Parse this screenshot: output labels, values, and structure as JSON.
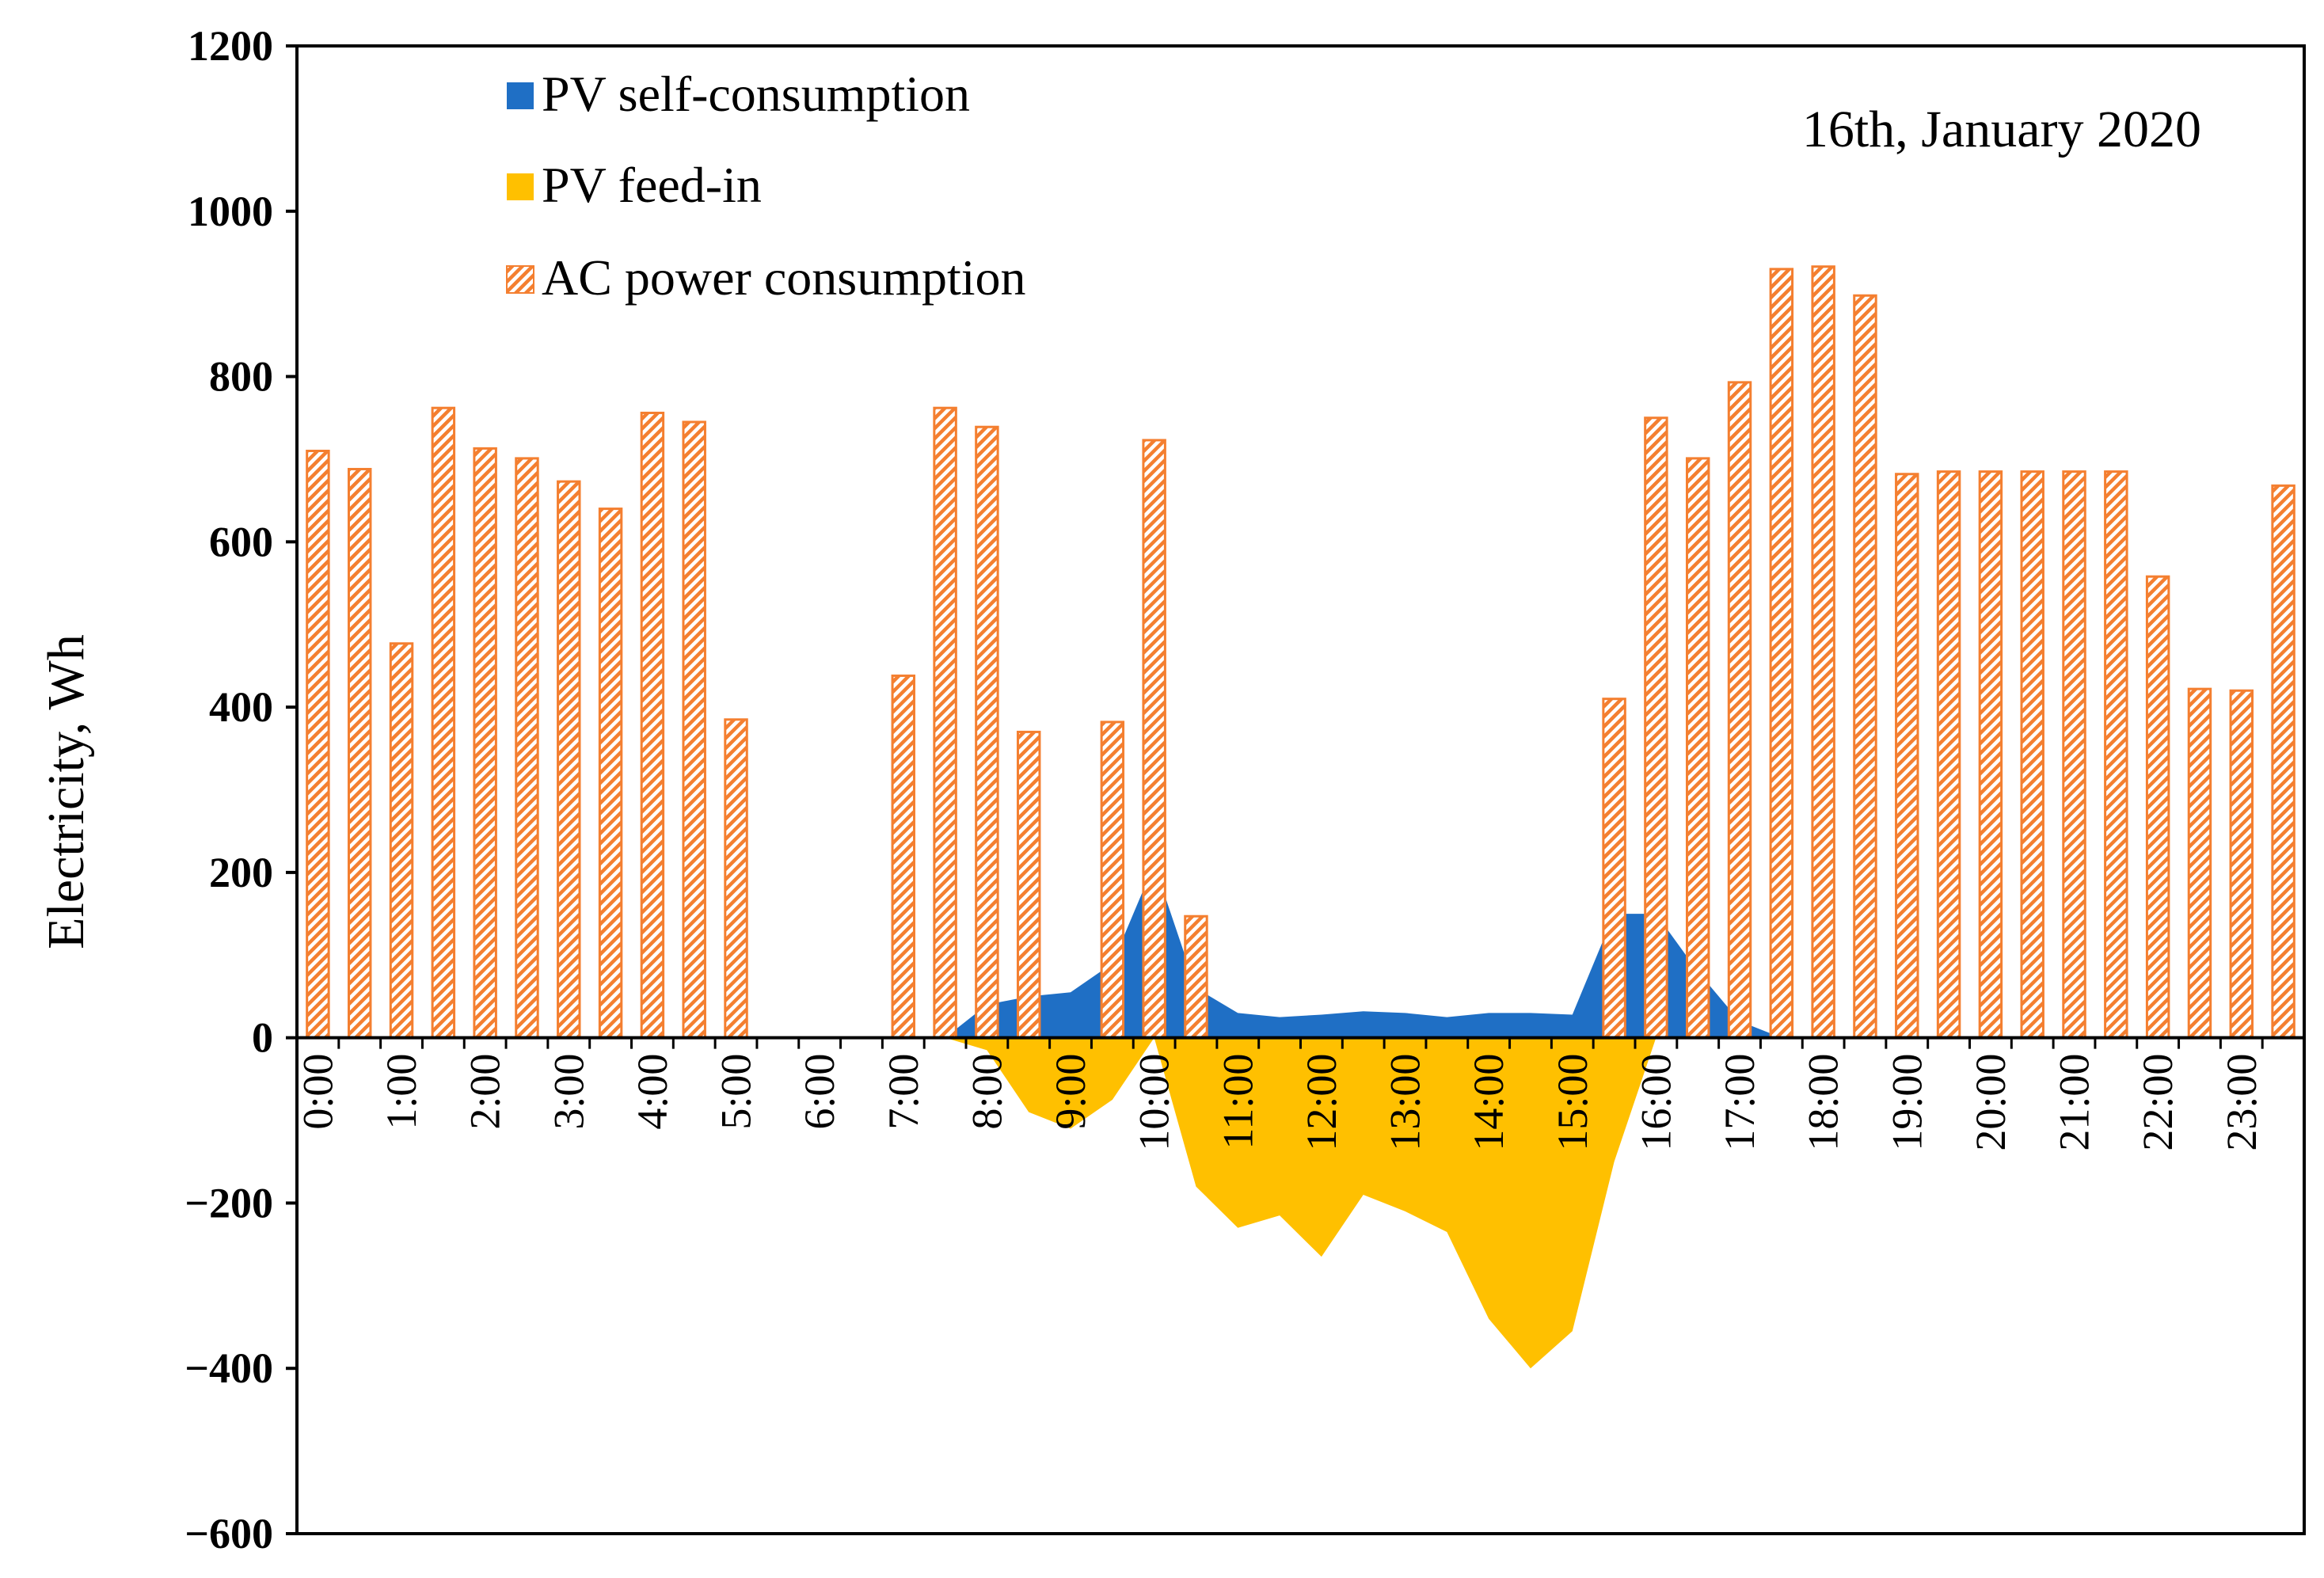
{
  "chart_data": {
    "type": "bar",
    "annotation": "16th, January 2020",
    "ylabel": "Electricity,  Wh",
    "xlabel": "",
    "ylim": [
      -600,
      1200
    ],
    "yticks": [
      1200,
      1000,
      800,
      600,
      400,
      200,
      0,
      -200,
      -400,
      -600
    ],
    "ytick_labels": [
      "1200",
      "1000",
      "800",
      "600",
      "400",
      "200",
      "0",
      "−200",
      "−400",
      "−600"
    ],
    "categories": [
      "0:00",
      "0:30",
      "1:00",
      "1:30",
      "2:00",
      "2:30",
      "3:00",
      "3:30",
      "4:00",
      "4:30",
      "5:00",
      "5:30",
      "6:00",
      "6:30",
      "7:00",
      "7:30",
      "8:00",
      "8:30",
      "9:00",
      "9:30",
      "10:00",
      "10:30",
      "11:00",
      "11:30",
      "12:00",
      "12:30",
      "13:00",
      "13:30",
      "14:00",
      "14:30",
      "15:00",
      "15:30",
      "16:00",
      "16:30",
      "17:00",
      "17:30",
      "18:00",
      "18:30",
      "19:00",
      "19:30",
      "20:00",
      "20:30",
      "21:00",
      "21:30",
      "22:00",
      "22:30",
      "23:00",
      "23:30"
    ],
    "x_tick_labels": [
      "0:00",
      "1:00",
      "2:00",
      "3:00",
      "4:00",
      "5:00",
      "6:00",
      "7:00",
      "8:00",
      "9:00",
      "10:00",
      "11:00",
      "12:00",
      "13:00",
      "14:00",
      "15:00",
      "16:00",
      "17:00",
      "18:00",
      "19:00",
      "20:00",
      "21:00",
      "22:00",
      "23:00"
    ],
    "series": [
      {
        "name": "PV self-consumption",
        "type": "area",
        "color": "#1F6FC5",
        "values": [
          0,
          0,
          0,
          0,
          0,
          0,
          0,
          0,
          0,
          0,
          0,
          0,
          0,
          0,
          0,
          0,
          40,
          50,
          55,
          90,
          210,
          60,
          30,
          25,
          28,
          32,
          30,
          25,
          30,
          30,
          28,
          150,
          150,
          80,
          20,
          0,
          0,
          0,
          0,
          0,
          0,
          0,
          0,
          0,
          0,
          0,
          0,
          0
        ]
      },
      {
        "name": "PV feed-in",
        "type": "area",
        "color": "#FFC000",
        "values": [
          0,
          0,
          0,
          0,
          0,
          0,
          0,
          0,
          0,
          0,
          0,
          0,
          0,
          0,
          0,
          0,
          -15,
          -90,
          -110,
          -75,
          0,
          -180,
          -230,
          -215,
          -265,
          -190,
          -210,
          -235,
          -340,
          -400,
          -355,
          -150,
          0,
          0,
          0,
          0,
          0,
          0,
          0,
          0,
          0,
          0,
          0,
          0,
          0,
          0,
          0,
          0
        ]
      },
      {
        "name": "AC power consumption",
        "type": "bar",
        "color": "#F47F30",
        "values": [
          710,
          688,
          477,
          762,
          713,
          701,
          673,
          640,
          756,
          745,
          385,
          null,
          null,
          null,
          438,
          762,
          739,
          370,
          null,
          382,
          723,
          147,
          null,
          null,
          null,
          null,
          null,
          null,
          null,
          null,
          null,
          410,
          750,
          701,
          793,
          930,
          933,
          898,
          682,
          685,
          685,
          685,
          685,
          685,
          558,
          422,
          420,
          668
        ]
      }
    ],
    "legend": {
      "placement": "top-left"
    },
    "grid": false
  }
}
